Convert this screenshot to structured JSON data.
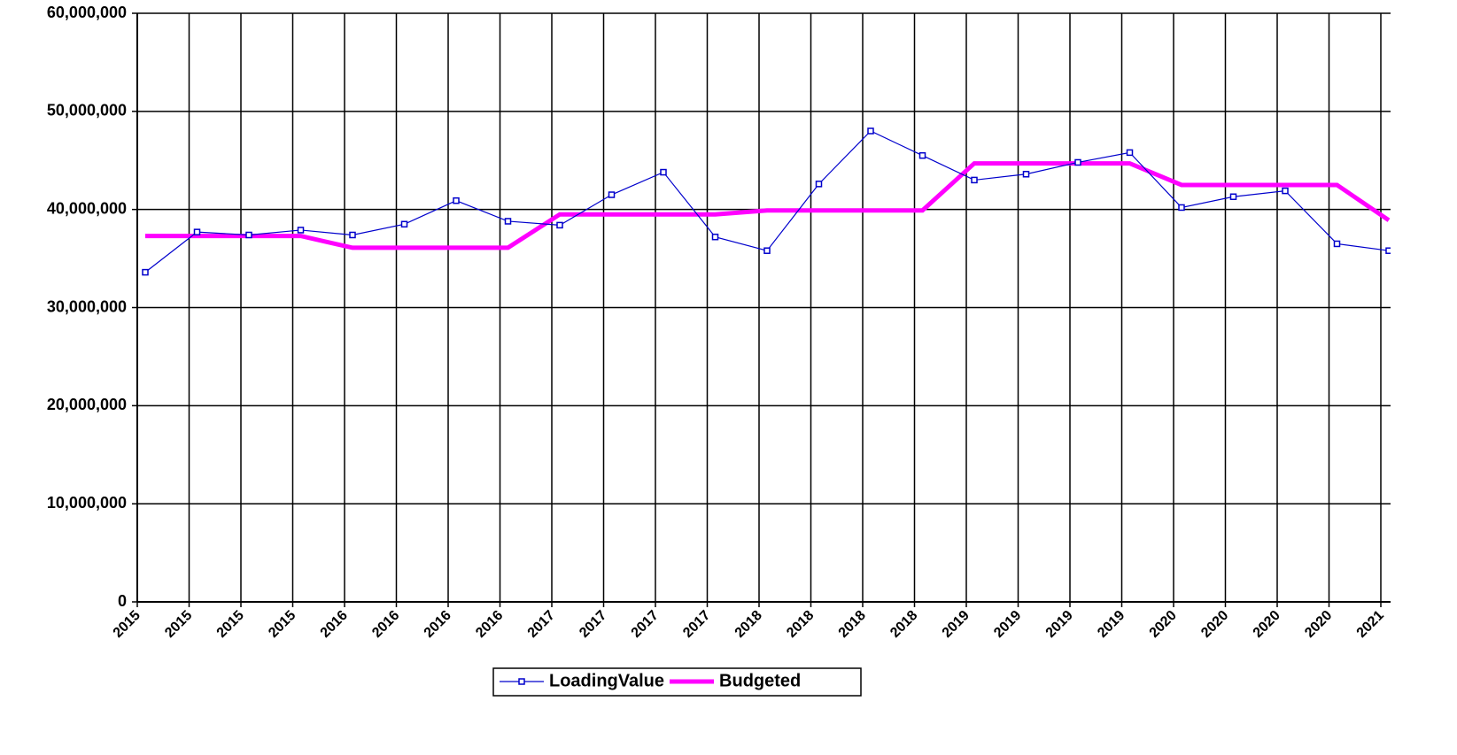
{
  "chart_data": {
    "type": "line",
    "categories": [
      "2015",
      "2015",
      "2015",
      "2015",
      "2016",
      "2016",
      "2016",
      "2016",
      "2017",
      "2017",
      "2017",
      "2017",
      "2018",
      "2018",
      "2018",
      "2018",
      "2019",
      "2019",
      "2019",
      "2019",
      "2020",
      "2020",
      "2020",
      "2020",
      "2021"
    ],
    "series": [
      {
        "name": "LoadingValue",
        "color": "#0000cc",
        "marker": "square",
        "values": [
          33600000,
          37700000,
          37400000,
          37900000,
          37400000,
          38500000,
          40900000,
          38800000,
          38400000,
          41500000,
          43800000,
          37200000,
          35800000,
          42600000,
          48000000,
          45500000,
          43000000,
          43600000,
          44800000,
          45800000,
          40200000,
          41300000,
          41900000,
          36500000,
          35800000
        ]
      },
      {
        "name": "Budgeted",
        "color": "#ff00ff",
        "values": [
          37300000,
          37300000,
          37300000,
          37300000,
          36100000,
          36100000,
          36100000,
          36100000,
          39500000,
          39500000,
          39500000,
          39500000,
          39900000,
          39900000,
          39900000,
          39900000,
          44700000,
          44700000,
          44700000,
          44700000,
          42500000,
          42500000,
          42500000,
          42500000,
          38900000
        ]
      }
    ],
    "ylim": [
      0,
      60000000
    ],
    "yticks": [
      0,
      {
        "value": 10000000,
        "label": "10,000,000"
      },
      {
        "value": 20000000,
        "label": "20,000,000"
      },
      {
        "value": 30000000,
        "label": "30,000,000"
      },
      {
        "value": 40000000,
        "label": "40,000,000"
      },
      {
        "value": 50000000,
        "label": "50,000,000"
      },
      {
        "value": 60000000,
        "label": "60,000,000"
      }
    ],
    "grid": true,
    "legend": "bottom"
  }
}
